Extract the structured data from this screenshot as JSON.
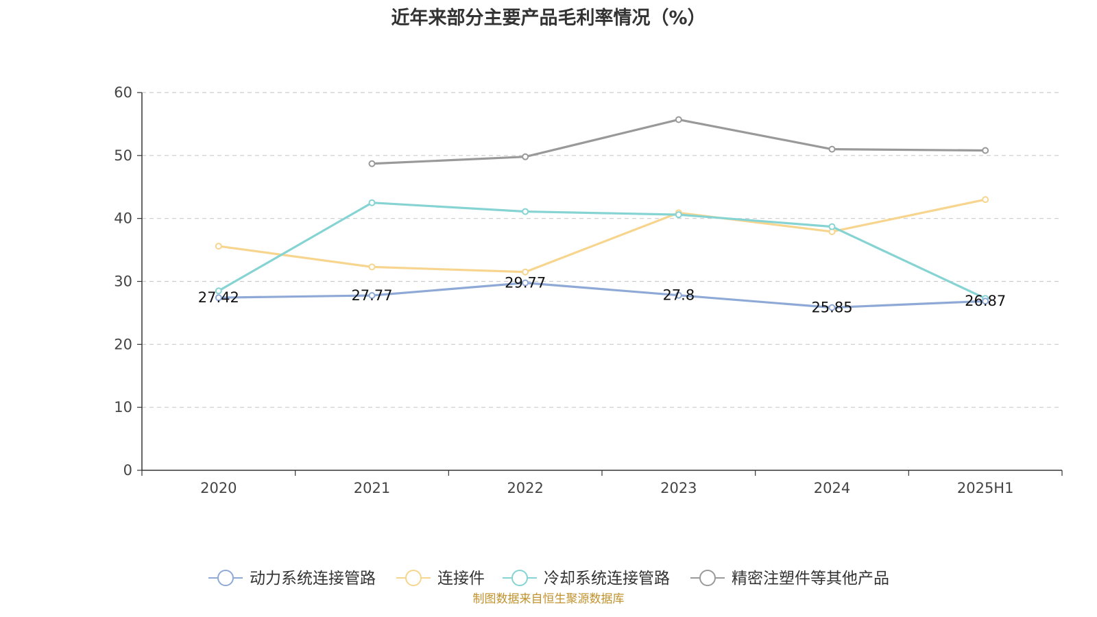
{
  "chart_data": {
    "type": "line",
    "title": "近年来部分主要产品毛利率情况（%）",
    "categories": [
      "2020",
      "2021",
      "2022",
      "2023",
      "2024",
      "2025H1"
    ],
    "ylim": [
      0,
      60
    ],
    "yticks": [
      0,
      10,
      20,
      30,
      40,
      50,
      60
    ],
    "grid": true,
    "legend_position": "bottom",
    "series": [
      {
        "name": "动力系统连接管路",
        "color": "#8fa9d6",
        "values": [
          27.42,
          27.77,
          29.77,
          27.8,
          25.85,
          26.87
        ],
        "data_labels": [
          "27.42",
          "27.77",
          "29.77",
          "27.8",
          "25.85",
          "26.87"
        ]
      },
      {
        "name": "连接件",
        "color": "#f7d58e",
        "values": [
          35.6,
          32.3,
          31.5,
          40.9,
          37.9,
          43.0
        ]
      },
      {
        "name": "冷却系统连接管路",
        "color": "#86d3d3",
        "values": [
          28.5,
          42.5,
          41.1,
          40.6,
          38.7,
          27.3
        ]
      },
      {
        "name": "精密注塑件等其他产品",
        "color": "#999999",
        "values": [
          null,
          48.7,
          49.8,
          55.7,
          51.0,
          50.8
        ]
      }
    ]
  },
  "footer": {
    "source": "制图数据来自恒生聚源数据库"
  }
}
